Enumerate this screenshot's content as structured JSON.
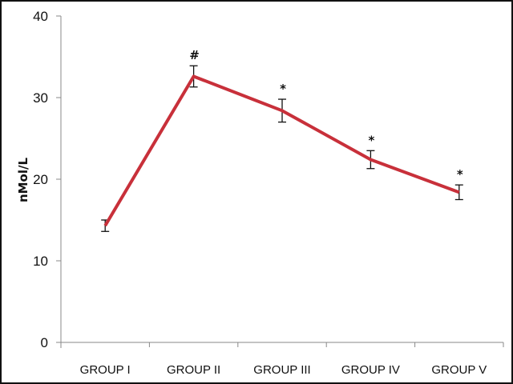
{
  "chart_data": {
    "type": "line",
    "title": "",
    "xlabel": "",
    "ylabel": "nMol/L",
    "ylim": [
      0,
      40
    ],
    "yticks": [
      0,
      10,
      20,
      30,
      40
    ],
    "grid": false,
    "legend": null,
    "categories": [
      "GROUP I",
      "GROUP II",
      "GROUP III",
      "GROUP IV",
      "GROUP V"
    ],
    "series": [
      {
        "name": "nMol/L",
        "color": "#c8303a",
        "values": [
          14.3,
          32.6,
          28.4,
          22.4,
          18.4
        ],
        "error": [
          0.7,
          1.3,
          1.4,
          1.1,
          0.9
        ],
        "annotations": [
          "",
          "#",
          "*",
          "*",
          "*"
        ]
      }
    ]
  },
  "axis": {
    "ylabel": "nMol/L",
    "yticks": [
      "0",
      "10",
      "20",
      "30",
      "40"
    ],
    "categories": [
      "GROUP I",
      "GROUP II",
      "GROUP III",
      "GROUP IV",
      "GROUP V"
    ]
  }
}
